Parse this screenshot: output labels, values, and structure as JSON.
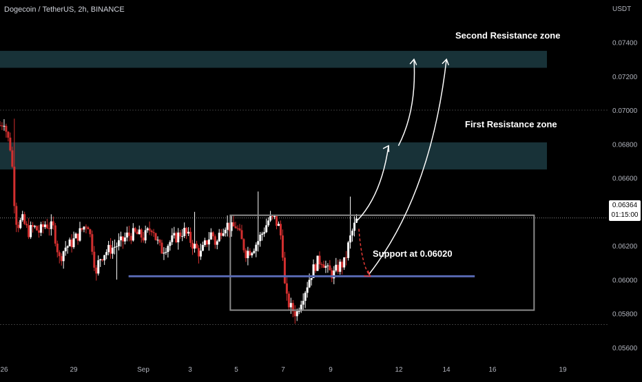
{
  "header": {
    "symbol_title": "Dogecoin / TetherUS, 2h, BINANCE",
    "axis_unit": "USDT"
  },
  "price_badge": {
    "price": "0.06364",
    "countdown": "01:15:00"
  },
  "annotations": {
    "second_resistance": "Second Resistance zone",
    "first_resistance": "First Resistance zone",
    "support": "Support at 0.06020"
  },
  "chart_data": {
    "type": "candlestick",
    "title": "Dogecoin / TetherUS, 2h, BINANCE",
    "ylabel": "USDT",
    "ylim": [
      0.0553,
      0.0765
    ],
    "y_ticks": [
      "0.07400",
      "0.07200",
      "0.07000",
      "0.06800",
      "0.06600",
      "0.06400",
      "0.06200",
      "0.06000",
      "0.05800",
      "0.05600"
    ],
    "x_ticks": [
      "26",
      "29",
      "Sep",
      "3",
      "5",
      "7",
      "9",
      "12",
      "14",
      "16",
      "19"
    ],
    "last_price": 0.06364,
    "zones": [
      {
        "name": "Second Resistance zone",
        "low": 0.0725,
        "high": 0.0735
      },
      {
        "name": "First Resistance zone",
        "low": 0.0665,
        "high": 0.0681
      }
    ],
    "support_level": 0.0602,
    "close_path": [
      [
        0,
        0.0691
      ],
      [
        0.03,
        0.0694
      ],
      [
        0.05,
        0.0685
      ],
      [
        0.08,
        0.0676
      ],
      [
        0.1,
        0.0648
      ],
      [
        0.12,
        0.0632
      ],
      [
        0.16,
        0.0635
      ],
      [
        0.2,
        0.0628
      ],
      [
        0.24,
        0.0631
      ],
      [
        0.28,
        0.0628
      ],
      [
        0.32,
        0.0633
      ],
      [
        0.38,
        0.063
      ],
      [
        0.42,
        0.0612
      ],
      [
        0.46,
        0.0619
      ],
      [
        0.5,
        0.0621
      ],
      [
        0.55,
        0.0626
      ],
      [
        0.6,
        0.0632
      ],
      [
        0.62,
        0.0634
      ],
      [
        0.66,
        0.0616
      ],
      [
        0.68,
        0.0601
      ],
      [
        0.7,
        0.0612
      ],
      [
        0.74,
        0.0616
      ],
      [
        0.78,
        0.0618
      ],
      [
        0.82,
        0.062
      ],
      [
        0.86,
        0.0622
      ],
      [
        0.9,
        0.0626
      ],
      [
        0.96,
        0.0627
      ],
      [
        1.02,
        0.0625
      ],
      [
        1.08,
        0.0632
      ],
      [
        1.1,
        0.0625
      ],
      [
        1.14,
        0.0617
      ],
      [
        1.2,
        0.0622
      ],
      [
        1.26,
        0.0626
      ],
      [
        1.3,
        0.0629
      ],
      [
        1.34,
        0.0624
      ],
      [
        1.38,
        0.0619
      ],
      [
        1.42,
        0.0615
      ],
      [
        1.46,
        0.0622
      ],
      [
        1.5,
        0.0628
      ],
      [
        1.53,
        0.062
      ],
      [
        1.56,
        0.0629
      ],
      [
        1.6,
        0.0633
      ],
      [
        1.64,
        0.063
      ],
      [
        1.67,
        0.0632
      ],
      [
        1.7,
        0.0625
      ],
      [
        1.74,
        0.0616
      ],
      [
        1.78,
        0.0618
      ],
      [
        1.82,
        0.0622
      ],
      [
        1.86,
        0.0628
      ],
      [
        1.9,
        0.0635
      ],
      [
        1.94,
        0.0636
      ],
      [
        1.98,
        0.063
      ],
      [
        2.0,
        0.0618
      ],
      [
        2.02,
        0.059
      ],
      [
        2.06,
        0.0583
      ],
      [
        2.1,
        0.058
      ],
      [
        2.13,
        0.0588
      ],
      [
        2.16,
        0.0594
      ],
      [
        2.2,
        0.0603
      ],
      [
        2.24,
        0.061
      ],
      [
        2.28,
        0.0612
      ],
      [
        2.32,
        0.0605
      ],
      [
        2.36,
        0.0603
      ],
      [
        2.4,
        0.0608
      ],
      [
        2.44,
        0.061
      ],
      [
        2.47,
        0.0622
      ],
      [
        2.5,
        0.063
      ],
      [
        2.53,
        0.0636
      ]
    ],
    "x_range": [
      0,
      4.3
    ],
    "wick_highs": [
      {
        "x": 0.1,
        "value": 0.0695
      },
      {
        "x": 1.83,
        "value": 0.0652
      },
      {
        "x": 2.48,
        "value": 0.0649
      },
      {
        "x": 1.38,
        "value": 0.064
      }
    ],
    "wick_lows": [
      {
        "x": 2.09,
        "value": 0.0574
      },
      {
        "x": 0.83,
        "value": 0.06
      }
    ],
    "projections": [
      {
        "from": 0.0635,
        "to": 0.0679,
        "label": "path to first resistance"
      },
      {
        "from": 0.0679,
        "to": 0.073,
        "label": "continuation to second resistance"
      },
      {
        "from": 0.0603,
        "to": 0.073,
        "label": "bounce from support to second resistance"
      },
      {
        "from": 0.0635,
        "to": 0.0602,
        "label": "pullback to support",
        "style": "dashed"
      }
    ],
    "range_box": {
      "low": 0.0582,
      "high": 0.0638
    }
  },
  "colors": {
    "background": "#000000",
    "up_candle": "#ffffff",
    "down_candle": "#d32f2f",
    "zone_fill": "#1c3b42",
    "support_line": "#5869b3",
    "range_box": "#8a8a8a",
    "projection_arrows": "#ffffff",
    "pullback_arrow": "#e53935",
    "axis_text": "#b2b5be"
  }
}
